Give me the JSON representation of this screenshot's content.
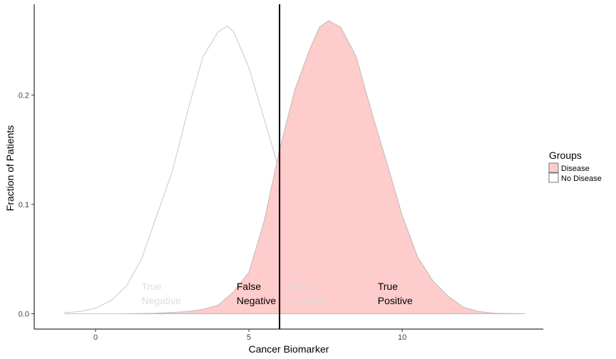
{
  "chart_data": {
    "type": "area",
    "xlabel": "Cancer Biomarker",
    "ylabel": "Fraction of Patients",
    "xlim": [
      -2,
      14.6
    ],
    "ylim": [
      -0.014,
      0.283
    ],
    "xticks": [
      0,
      5,
      10
    ],
    "yticks": [
      0.0,
      0.1,
      0.2
    ],
    "xtick_labels": [
      "0",
      "5",
      "10"
    ],
    "ytick_labels": [
      "0.0",
      "0.1",
      "0.2"
    ],
    "threshold": 6,
    "grid": false,
    "legend": {
      "title": "Groups",
      "placement": "right",
      "entries": [
        {
          "name": "Disease",
          "fill": "#ffcccc",
          "stroke": "#777777"
        },
        {
          "name": "No Disease",
          "fill": "#ffffff",
          "stroke": "#777777"
        }
      ]
    },
    "series": [
      {
        "name": "No Disease",
        "fill": "#ffffff",
        "stroke": "#c8c8c8",
        "x": [
          -1,
          -0.5,
          0,
          0.5,
          1,
          1.5,
          2,
          2.5,
          3,
          3.5,
          4,
          4.3,
          4.5,
          5,
          5.5,
          6,
          6.5,
          7,
          7.5,
          8,
          8.5,
          9,
          9.5,
          10
        ],
        "y": [
          0.001,
          0.002,
          0.005,
          0.012,
          0.025,
          0.05,
          0.09,
          0.13,
          0.185,
          0.235,
          0.258,
          0.263,
          0.258,
          0.225,
          0.178,
          0.13,
          0.085,
          0.046,
          0.02,
          0.007,
          0.002,
          0.001,
          0.0,
          0.0
        ]
      },
      {
        "name": "Disease",
        "fill": "#ffcccc",
        "stroke": "#bbbbbb",
        "x": [
          1,
          2,
          3,
          3.5,
          4,
          4.5,
          5,
          5.5,
          6,
          6.5,
          7,
          7.3,
          7.6,
          8,
          8.5,
          9,
          9.5,
          10,
          10.5,
          11,
          11.5,
          12,
          12.5,
          13,
          14
        ],
        "y": [
          0.0,
          0.0005,
          0.002,
          0.004,
          0.008,
          0.02,
          0.038,
          0.085,
          0.15,
          0.205,
          0.243,
          0.262,
          0.268,
          0.262,
          0.235,
          0.185,
          0.138,
          0.09,
          0.052,
          0.03,
          0.016,
          0.006,
          0.002,
          0.0005,
          0.0
        ]
      }
    ],
    "annotations": [
      {
        "line1": "True",
        "line2": "Negative",
        "x": 1.5,
        "color": "#dddddd"
      },
      {
        "line1": "False",
        "line2": "Negative",
        "x": 4.6,
        "color": "#000000"
      },
      {
        "line1": "False",
        "line2": "Positive",
        "x": 6.35,
        "color": "#dddddd"
      },
      {
        "line1": "True",
        "line2": "Positive",
        "x": 9.2,
        "color": "#000000"
      }
    ]
  }
}
